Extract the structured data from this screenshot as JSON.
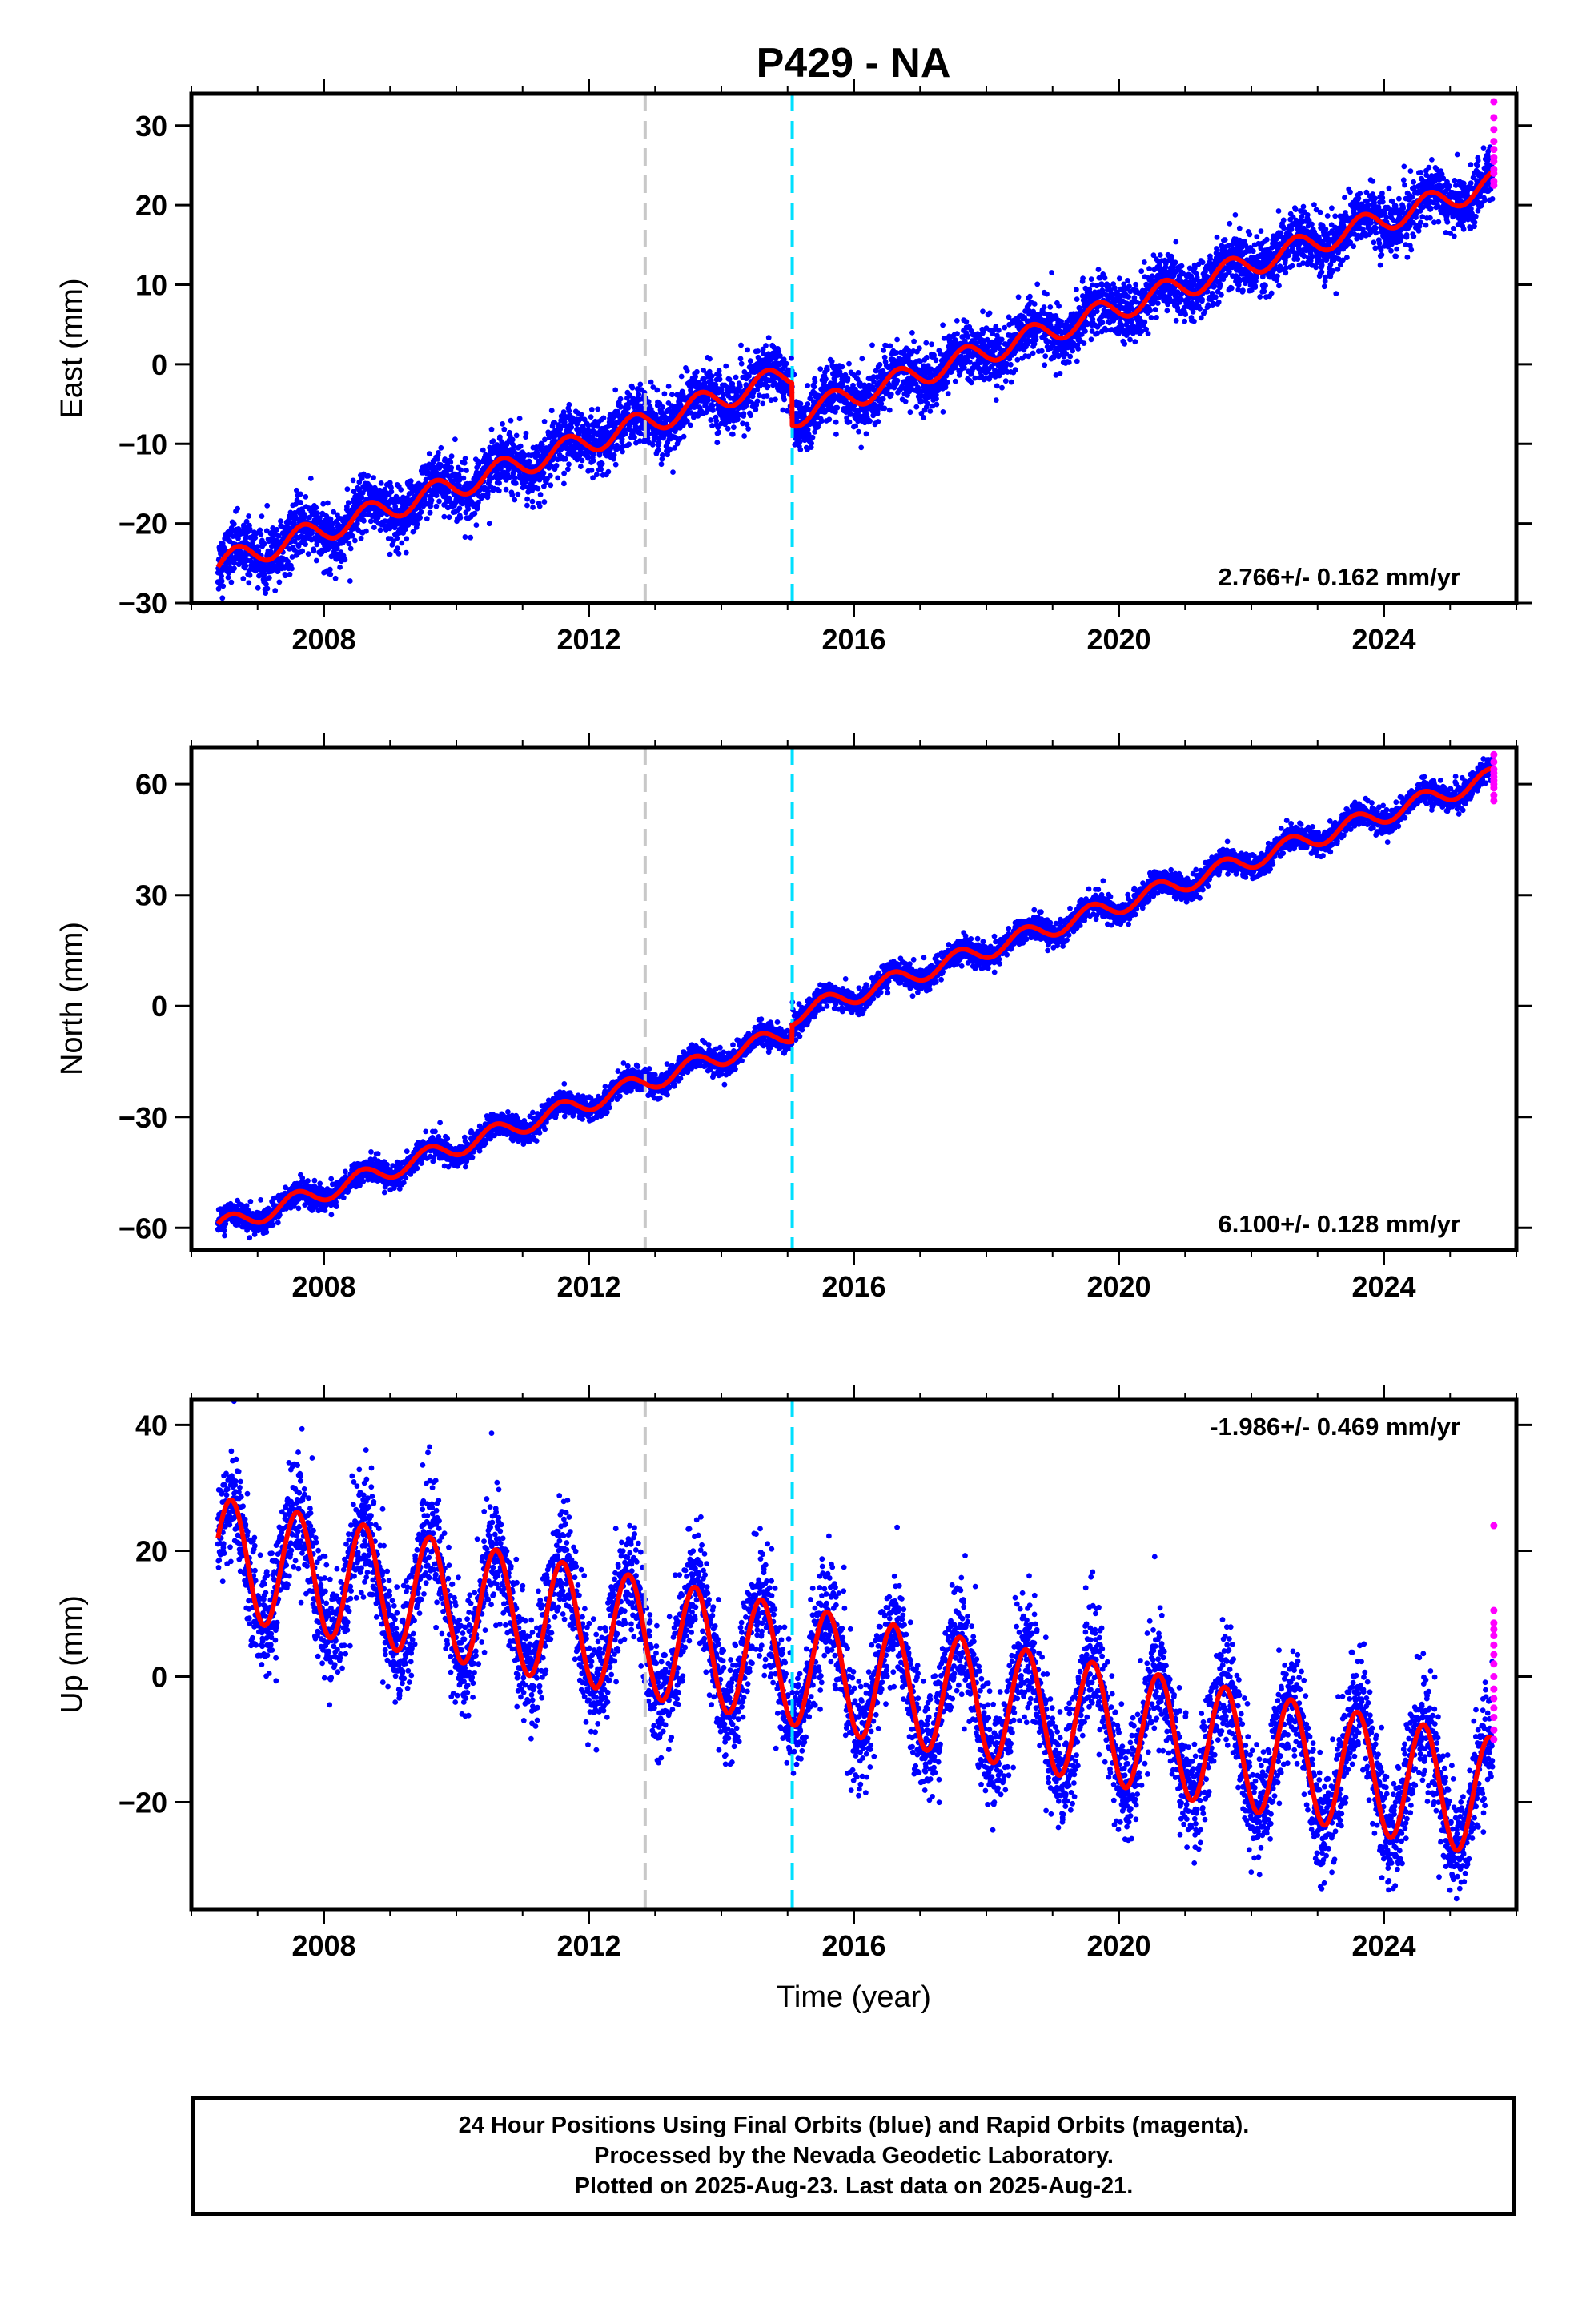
{
  "title": "P429 - NA",
  "colors": {
    "final_orbit_points": "#0000ff",
    "rapid_orbit_points": "#ff00ff",
    "model_fit": "#ff0000",
    "equipment_change_line": "#c8c8c8",
    "event_line": "#00e0ff"
  },
  "chart_data": [
    {
      "type": "scatter",
      "name": "east",
      "ylabel": "East (mm)",
      "xlim": [
        2006.0,
        2026.0
      ],
      "ylim": [
        -30,
        34
      ],
      "yticks": [
        "-30",
        "-20",
        "-10",
        "0",
        "10",
        "20",
        "30"
      ],
      "xticks": [
        "2008",
        "2012",
        "2016",
        "2020",
        "2024"
      ],
      "rate_label": "2.766+/- 0.162 mm/yr",
      "rate_label_position": "bottom-right",
      "vertical_lines": [
        {
          "x": 2012.85,
          "color": "#c8c8c8",
          "style": "dashed"
        },
        {
          "x": 2015.07,
          "color": "#00e0ff",
          "style": "dashed"
        }
      ],
      "data_start": 2006.4,
      "data_end": 2025.64,
      "model": {
        "value_at_start": -25.2,
        "rate": 2.766,
        "annual_amplitude": 1.5,
        "annual_peak": 0.68,
        "offsets": [
          {
            "x": 2015.07,
            "step": -5.3
          }
        ],
        "scatter": 1.8
      },
      "rapid_orbit_values": [
        33,
        31,
        29.5,
        28,
        27,
        26,
        25.5,
        24.5,
        24,
        23,
        22.5
      ]
    },
    {
      "type": "scatter",
      "name": "north",
      "ylabel": "North (mm)",
      "xlim": [
        2006.0,
        2026.0
      ],
      "ylim": [
        -66,
        70
      ],
      "yticks": [
        "-60",
        "-30",
        "0",
        "30",
        "60"
      ],
      "xticks": [
        "2008",
        "2012",
        "2016",
        "2020",
        "2024"
      ],
      "rate_label": "6.100+/- 0.128 mm/yr",
      "rate_label_position": "bottom-right",
      "vertical_lines": [
        {
          "x": 2012.85,
          "color": "#c8c8c8",
          "style": "dashed"
        },
        {
          "x": 2015.07,
          "color": "#00e0ff",
          "style": "dashed"
        }
      ],
      "data_start": 2006.4,
      "data_end": 2025.64,
      "model": {
        "value_at_start": -60.0,
        "rate": 6.1,
        "annual_amplitude": 2.5,
        "annual_peak": 0.58,
        "offsets": [
          {
            "x": 2015.07,
            "step": 4.5
          }
        ],
        "scatter": 1.6
      },
      "rapid_orbit_values": [
        68,
        66,
        64,
        63,
        62,
        61,
        60,
        59,
        57,
        55.5
      ]
    },
    {
      "type": "scatter",
      "name": "up",
      "ylabel": "Up (mm)",
      "xlabel": "Time (year)",
      "xlim": [
        2006.0,
        2026.0
      ],
      "ylim": [
        -37,
        44
      ],
      "yticks": [
        "-20",
        "0",
        "20",
        "40"
      ],
      "xticks": [
        "2008",
        "2012",
        "2016",
        "2020",
        "2024"
      ],
      "rate_label": "-1.986+/- 0.469 mm/yr",
      "rate_label_position": "top-right",
      "vertical_lines": [
        {
          "x": 2012.85,
          "color": "#c8c8c8",
          "style": "dashed"
        },
        {
          "x": 2015.07,
          "color": "#00e0ff",
          "style": "dashed"
        }
      ],
      "data_start": 2006.4,
      "data_end": 2025.64,
      "model": {
        "value_at_start": 19.0,
        "rate": -1.986,
        "annual_amplitude": 9.5,
        "annual_peak": 0.6,
        "offsets": [],
        "scatter": 4.5
      },
      "rapid_orbit_values": [
        24,
        10.5,
        8.5,
        7.5,
        6.5,
        5,
        3.5,
        2,
        0,
        -2,
        -3.5,
        -5,
        -6.5,
        -8.5,
        -10
      ]
    }
  ],
  "footer": {
    "line1": "24 Hour Positions Using Final Orbits (blue) and Rapid Orbits (magenta).",
    "line2": "Processed by the Nevada Geodetic Laboratory.",
    "line3": "Plotted on 2025-Aug-23. Last data on 2025-Aug-21."
  }
}
